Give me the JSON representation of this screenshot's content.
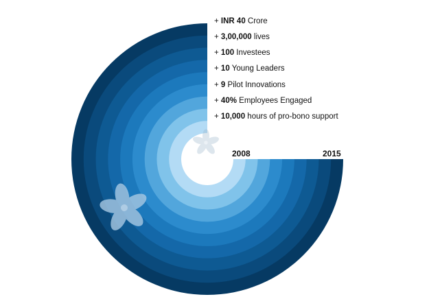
{
  "colors": {
    "rings": [
      "#063a63",
      "#0a4a7c",
      "#0e5a93",
      "#1468a9",
      "#1c79bc",
      "#2c8bcd",
      "#52a6dc",
      "#80c3ea",
      "#b3dbf5"
    ],
    "flower": "#a8c9e3"
  },
  "rings_count": 9,
  "icons": {
    "small_flower": "flower-icon",
    "large_flower": "flower-icon"
  },
  "stats": [
    {
      "prefix": "+ ",
      "bold": "INR 40",
      "text": " Crore"
    },
    {
      "prefix": "+ ",
      "bold": "3,00,000",
      "text": " lives"
    },
    {
      "prefix": "+ ",
      "bold": "100",
      "text": " Investees"
    },
    {
      "prefix": "+ ",
      "bold": "10",
      "text": " Young Leaders"
    },
    {
      "prefix": "+ ",
      "bold": "9",
      "text": " Pilot Innovations"
    },
    {
      "prefix": "+ ",
      "bold": "40%",
      "text": " Employees Engaged"
    },
    {
      "prefix": "+ ",
      "bold": "10,000",
      "text": " hours of pro-bono support"
    }
  ],
  "years": {
    "start": "2008",
    "end": "2015"
  }
}
